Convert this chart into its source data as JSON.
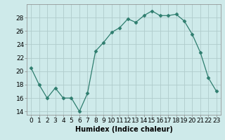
{
  "x": [
    0,
    1,
    2,
    3,
    4,
    5,
    6,
    7,
    8,
    9,
    10,
    11,
    12,
    13,
    14,
    15,
    16,
    17,
    18,
    19,
    20,
    21,
    22,
    23
  ],
  "y": [
    20.5,
    18.0,
    16.0,
    17.5,
    16.0,
    16.0,
    14.0,
    16.7,
    23.0,
    24.3,
    25.8,
    26.5,
    27.8,
    27.3,
    28.3,
    29.0,
    28.3,
    28.3,
    28.5,
    27.5,
    25.5,
    22.8,
    19.0,
    17.0
  ],
  "line_color": "#2e7d6e",
  "marker": "D",
  "marker_size": 2.5,
  "bg_color": "#ceeaea",
  "grid_color": "#b0cccc",
  "xlabel": "Humidex (Indice chaleur)",
  "xlabel_fontsize": 7,
  "tick_fontsize": 6.5,
  "ylim": [
    13.5,
    30
  ],
  "xlim": [
    -0.5,
    23.5
  ],
  "yticks": [
    14,
    16,
    18,
    20,
    22,
    24,
    26,
    28
  ],
  "xticks": [
    0,
    1,
    2,
    3,
    4,
    5,
    6,
    7,
    8,
    9,
    10,
    11,
    12,
    13,
    14,
    15,
    16,
    17,
    18,
    19,
    20,
    21,
    22,
    23
  ]
}
